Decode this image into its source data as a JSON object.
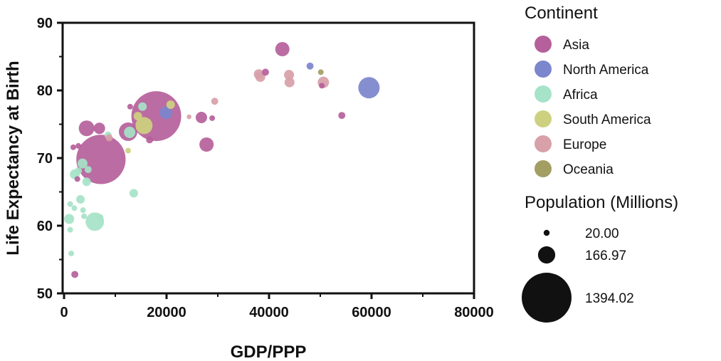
{
  "chart_data": {
    "type": "scatter",
    "subtype": "bubble",
    "xlabel": "GDP/PPP",
    "ylabel": "Life Expectancy at Birth",
    "xlim": [
      0,
      80000
    ],
    "ylim": [
      50,
      90
    ],
    "xticks": [
      "0",
      "20000",
      "40000",
      "60000",
      "80000"
    ],
    "yticks": [
      "50",
      "60",
      "70",
      "80",
      "90"
    ],
    "grid": false,
    "legend": {
      "title": "Continent",
      "placement": "right",
      "entries": [
        {
          "name": "Asia",
          "color": "#b5609a"
        },
        {
          "name": "North America",
          "color": "#7b86cc"
        },
        {
          "name": "Africa",
          "color": "#a6e3c8"
        },
        {
          "name": "South America",
          "color": "#cdd17f"
        },
        {
          "name": "Europe",
          "color": "#d8a0a8"
        },
        {
          "name": "Oceania",
          "color": "#a39e62"
        }
      ]
    },
    "size_legend": {
      "title": "Population (Millions)",
      "values": [
        20.0,
        166.97,
        1394.02
      ],
      "labels": [
        "20.00",
        "166.97",
        "1394.02"
      ]
    },
    "points": [
      {
        "continent": "Asia",
        "x": 7200,
        "y": 69.8,
        "pop": 1366
      },
      {
        "continent": "Asia",
        "x": 18000,
        "y": 76.2,
        "pop": 1394
      },
      {
        "continent": "North America",
        "x": 59500,
        "y": 80.4,
        "pop": 256
      },
      {
        "continent": "North America",
        "x": 48000,
        "y": 83.6,
        "pop": 28
      },
      {
        "continent": "North America",
        "x": 19900,
        "y": 76.7,
        "pop": 92
      },
      {
        "continent": "Asia",
        "x": 42600,
        "y": 86.1,
        "pop": 114
      },
      {
        "continent": "Europe",
        "x": 38000,
        "y": 82.4,
        "pop": 56
      },
      {
        "continent": "Europe",
        "x": 38300,
        "y": 82.0,
        "pop": 56
      },
      {
        "continent": "Asia",
        "x": 39300,
        "y": 82.7,
        "pop": 28
      },
      {
        "continent": "Europe",
        "x": 43900,
        "y": 82.3,
        "pop": 56
      },
      {
        "continent": "Europe",
        "x": 44000,
        "y": 81.2,
        "pop": 56
      },
      {
        "continent": "Oceania",
        "x": 50100,
        "y": 82.7,
        "pop": 18
      },
      {
        "continent": "Europe",
        "x": 50600,
        "y": 81.2,
        "pop": 73
      },
      {
        "continent": "Asia",
        "x": 50300,
        "y": 80.7,
        "pop": 18
      },
      {
        "continent": "Asia",
        "x": 54200,
        "y": 76.3,
        "pop": 28
      },
      {
        "continent": "Europe",
        "x": 29400,
        "y": 78.4,
        "pop": 28
      },
      {
        "continent": "Europe",
        "x": 24400,
        "y": 76.1,
        "pop": 12
      },
      {
        "continent": "Asia",
        "x": 26800,
        "y": 76.0,
        "pop": 73
      },
      {
        "continent": "Asia",
        "x": 28900,
        "y": 75.9,
        "pop": 18
      },
      {
        "continent": "Asia",
        "x": 27800,
        "y": 72.0,
        "pop": 114
      },
      {
        "continent": "Asia",
        "x": 4400,
        "y": 74.4,
        "pop": 138
      },
      {
        "continent": "Asia",
        "x": 6900,
        "y": 74.4,
        "pop": 73
      },
      {
        "continent": "Africa",
        "x": 8600,
        "y": 73.4,
        "pop": 28
      },
      {
        "continent": "Europe",
        "x": 8800,
        "y": 73.0,
        "pop": 28
      },
      {
        "continent": "Asia",
        "x": 12900,
        "y": 77.6,
        "pop": 18
      },
      {
        "continent": "Asia",
        "x": 12500,
        "y": 73.9,
        "pop": 192
      },
      {
        "continent": "Africa",
        "x": 12800,
        "y": 73.8,
        "pop": 73
      },
      {
        "continent": "Africa",
        "x": 15300,
        "y": 77.6,
        "pop": 41
      },
      {
        "continent": "South America",
        "x": 14400,
        "y": 76.2,
        "pop": 41
      },
      {
        "continent": "South America",
        "x": 15600,
        "y": 74.8,
        "pop": 164
      },
      {
        "continent": "South America",
        "x": 20800,
        "y": 77.9,
        "pop": 41
      },
      {
        "continent": "Asia",
        "x": 16700,
        "y": 72.7,
        "pop": 28
      },
      {
        "continent": "South America",
        "x": 12500,
        "y": 71.1,
        "pop": 18
      },
      {
        "continent": "Asia",
        "x": 1800,
        "y": 71.6,
        "pop": 18
      },
      {
        "continent": "Asia",
        "x": 2800,
        "y": 71.8,
        "pop": 18
      },
      {
        "continent": "Africa",
        "x": 3600,
        "y": 69.2,
        "pop": 56
      },
      {
        "continent": "Africa",
        "x": 4700,
        "y": 68.3,
        "pop": 28
      },
      {
        "continent": "Africa",
        "x": 2100,
        "y": 67.6,
        "pop": 56
      },
      {
        "continent": "Africa",
        "x": 2800,
        "y": 68.1,
        "pop": 28
      },
      {
        "continent": "Asia",
        "x": 2600,
        "y": 66.9,
        "pop": 18
      },
      {
        "continent": "Africa",
        "x": 4400,
        "y": 66.5,
        "pop": 41
      },
      {
        "continent": "Africa",
        "x": 13600,
        "y": 64.8,
        "pop": 41
      },
      {
        "continent": "Africa",
        "x": 3200,
        "y": 63.9,
        "pop": 41
      },
      {
        "continent": "Africa",
        "x": 1200,
        "y": 63.2,
        "pop": 18
      },
      {
        "continent": "Africa",
        "x": 2000,
        "y": 62.6,
        "pop": 18
      },
      {
        "continent": "Africa",
        "x": 3700,
        "y": 62.3,
        "pop": 18
      },
      {
        "continent": "Africa",
        "x": 3900,
        "y": 61.4,
        "pop": 18
      },
      {
        "continent": "Africa",
        "x": 6000,
        "y": 60.6,
        "pop": 192
      },
      {
        "continent": "Africa",
        "x": 7000,
        "y": 61.2,
        "pop": 28
      },
      {
        "continent": "Africa",
        "x": 1000,
        "y": 61.0,
        "pop": 56
      },
      {
        "continent": "Africa",
        "x": 1200,
        "y": 59.4,
        "pop": 18
      },
      {
        "continent": "Africa",
        "x": 1400,
        "y": 55.9,
        "pop": 18
      },
      {
        "continent": "Asia",
        "x": 2100,
        "y": 52.8,
        "pop": 28
      }
    ]
  }
}
